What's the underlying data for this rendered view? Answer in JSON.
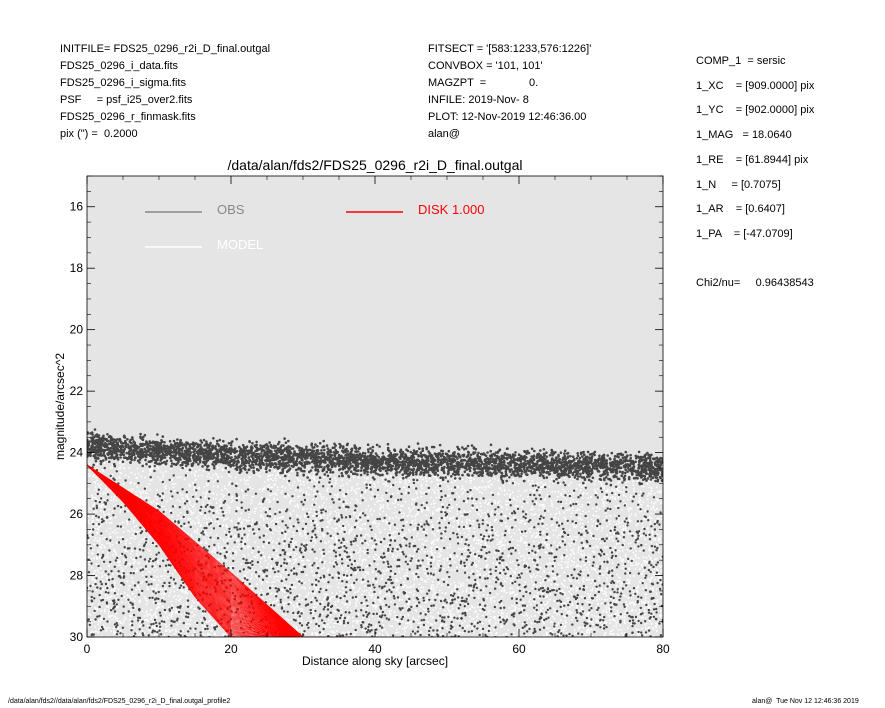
{
  "header_left": [
    "INITFILE= FDS25_0296_r2i_D_final.outgal",
    "FDS25_0296_i_data.fits",
    "FDS25_0296_i_sigma.fits",
    "PSF     = psf_i25_over2.fits",
    "FDS25_0296_r_finmask.fits",
    "pix (\") =  0.2000"
  ],
  "header_mid": [
    "FITSECT = '[583:1233,576:1226]'",
    "CONVBOX = '101, 101'",
    "MAGZPT  =              0.",
    "INFILE: 2019-Nov- 8",
    "PLOT: 12-Nov-2019 12:46:36.00",
    "alan@"
  ],
  "header_right": [
    "COMP_1  = sersic",
    "1_XC    = [909.0000] pix",
    "1_YC    = [902.0000] pix",
    "1_MAG   = 18.0640",
    "1_RE    = [61.8944] pix",
    "1_N     = [0.7075]",
    "1_AR    = [0.6407]",
    "1_PA    = [-47.0709]",
    "",
    "Chi2/nu=     0.96438543"
  ],
  "footer_left": "/data/alan/fds2//data/alan/fds2/FDS25_0296_r2i_D_final.outgal_profile2",
  "footer_right": "alan@  Tue Nov 12 12:46:36 2019",
  "colors": {
    "background": "#e5e5e5",
    "obs": "#454545",
    "model": "#ffffff",
    "disk": "#ff0000",
    "legend_obs": "#888888"
  },
  "chart_data": {
    "type": "scatter",
    "title": "/data/alan/fds2/FDS25_0296_r2i_D_final.outgal",
    "xlabel": "Distance along sky [arcsec]",
    "ylabel": "magnitude/arcsec^2",
    "xlim": [
      0,
      80
    ],
    "ylim": [
      30,
      15
    ],
    "y_inverted": true,
    "xticks": [
      0,
      20,
      40,
      60,
      80
    ],
    "yticks": [
      16,
      18,
      20,
      22,
      24,
      26,
      28,
      30
    ],
    "grid": false,
    "legend": [
      {
        "label": "OBS",
        "color": "#888888"
      },
      {
        "label": "MODEL",
        "color": "#ffffff"
      },
      {
        "label": "DISK  1.000",
        "color": "#ff0000"
      }
    ],
    "legend_position": "top",
    "series": [
      {
        "name": "OBS",
        "description_points": [
          [
            0,
            23.8
          ],
          [
            20,
            24.1
          ],
          [
            40,
            24.3
          ],
          [
            60,
            24.4
          ],
          [
            80,
            24.5
          ]
        ],
        "scatter_lower": [
          [
            0,
            24.8
          ],
          [
            20,
            28.5
          ],
          [
            40,
            30
          ],
          [
            60,
            30
          ],
          [
            80,
            30
          ]
        ]
      },
      {
        "name": "MODEL",
        "description_points": [
          [
            0,
            24.5
          ],
          [
            20,
            25.8
          ],
          [
            40,
            27.0
          ],
          [
            60,
            28.2
          ],
          [
            80,
            29.3
          ]
        ]
      },
      {
        "name": "DISK  1.000",
        "upper_edge": [
          [
            0,
            24.4
          ],
          [
            10,
            25.9
          ],
          [
            20,
            27.9
          ],
          [
            30,
            30.0
          ],
          [
            37,
            30.0
          ]
        ],
        "lower_edge": [
          [
            0,
            24.4
          ],
          [
            5,
            25.6
          ],
          [
            10,
            27.0
          ],
          [
            15,
            28.7
          ],
          [
            20,
            30.0
          ]
        ]
      }
    ]
  }
}
